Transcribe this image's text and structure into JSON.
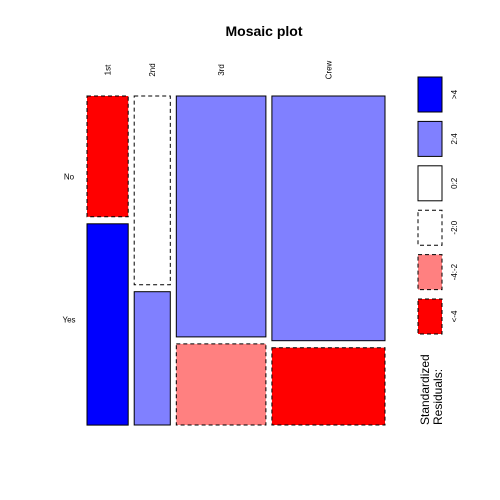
{
  "chart_data": {
    "type": "mosaic",
    "title": "Mosaic plot",
    "columns": [
      "1st",
      "2nd",
      "3rd",
      "Crew"
    ],
    "rows": [
      "No",
      "Yes"
    ],
    "column_proportions": [
      0.147,
      0.129,
      0.32,
      0.404
    ],
    "cells": [
      {
        "column": "1st",
        "row": "No",
        "proportion": 0.375,
        "residual_class": "<-4"
      },
      {
        "column": "1st",
        "row": "Yes",
        "proportion": 0.625,
        "residual_class": ">4"
      },
      {
        "column": "2nd",
        "row": "No",
        "proportion": 0.586,
        "residual_class": "-2:0"
      },
      {
        "column": "2nd",
        "row": "Yes",
        "proportion": 0.414,
        "residual_class": "2:4"
      },
      {
        "column": "3rd",
        "row": "No",
        "proportion": 0.748,
        "residual_class": "2:4"
      },
      {
        "column": "3rd",
        "row": "Yes",
        "proportion": 0.252,
        "residual_class": "-4:-2"
      },
      {
        "column": "Crew",
        "row": "No",
        "proportion": 0.76,
        "residual_class": "2:4"
      },
      {
        "column": "Crew",
        "row": "Yes",
        "proportion": 0.24,
        "residual_class": "<-4"
      }
    ],
    "legend": {
      "title_lines": [
        "Standardized",
        "Residuals:"
      ],
      "placement": "right",
      "items": [
        {
          "label": ">4",
          "color": "#0000ff",
          "dashed": false
        },
        {
          "label": "2:4",
          "color": "#8080ff",
          "dashed": false
        },
        {
          "label": "0:2",
          "color": "#ffffff",
          "dashed": false
        },
        {
          "label": "-2:0",
          "color": "#ffffff",
          "dashed": true
        },
        {
          "label": "-4:-2",
          "color": "#ff8080",
          "dashed": true
        },
        {
          "label": "<-4",
          "color": "#ff0000",
          "dashed": true
        }
      ]
    }
  }
}
